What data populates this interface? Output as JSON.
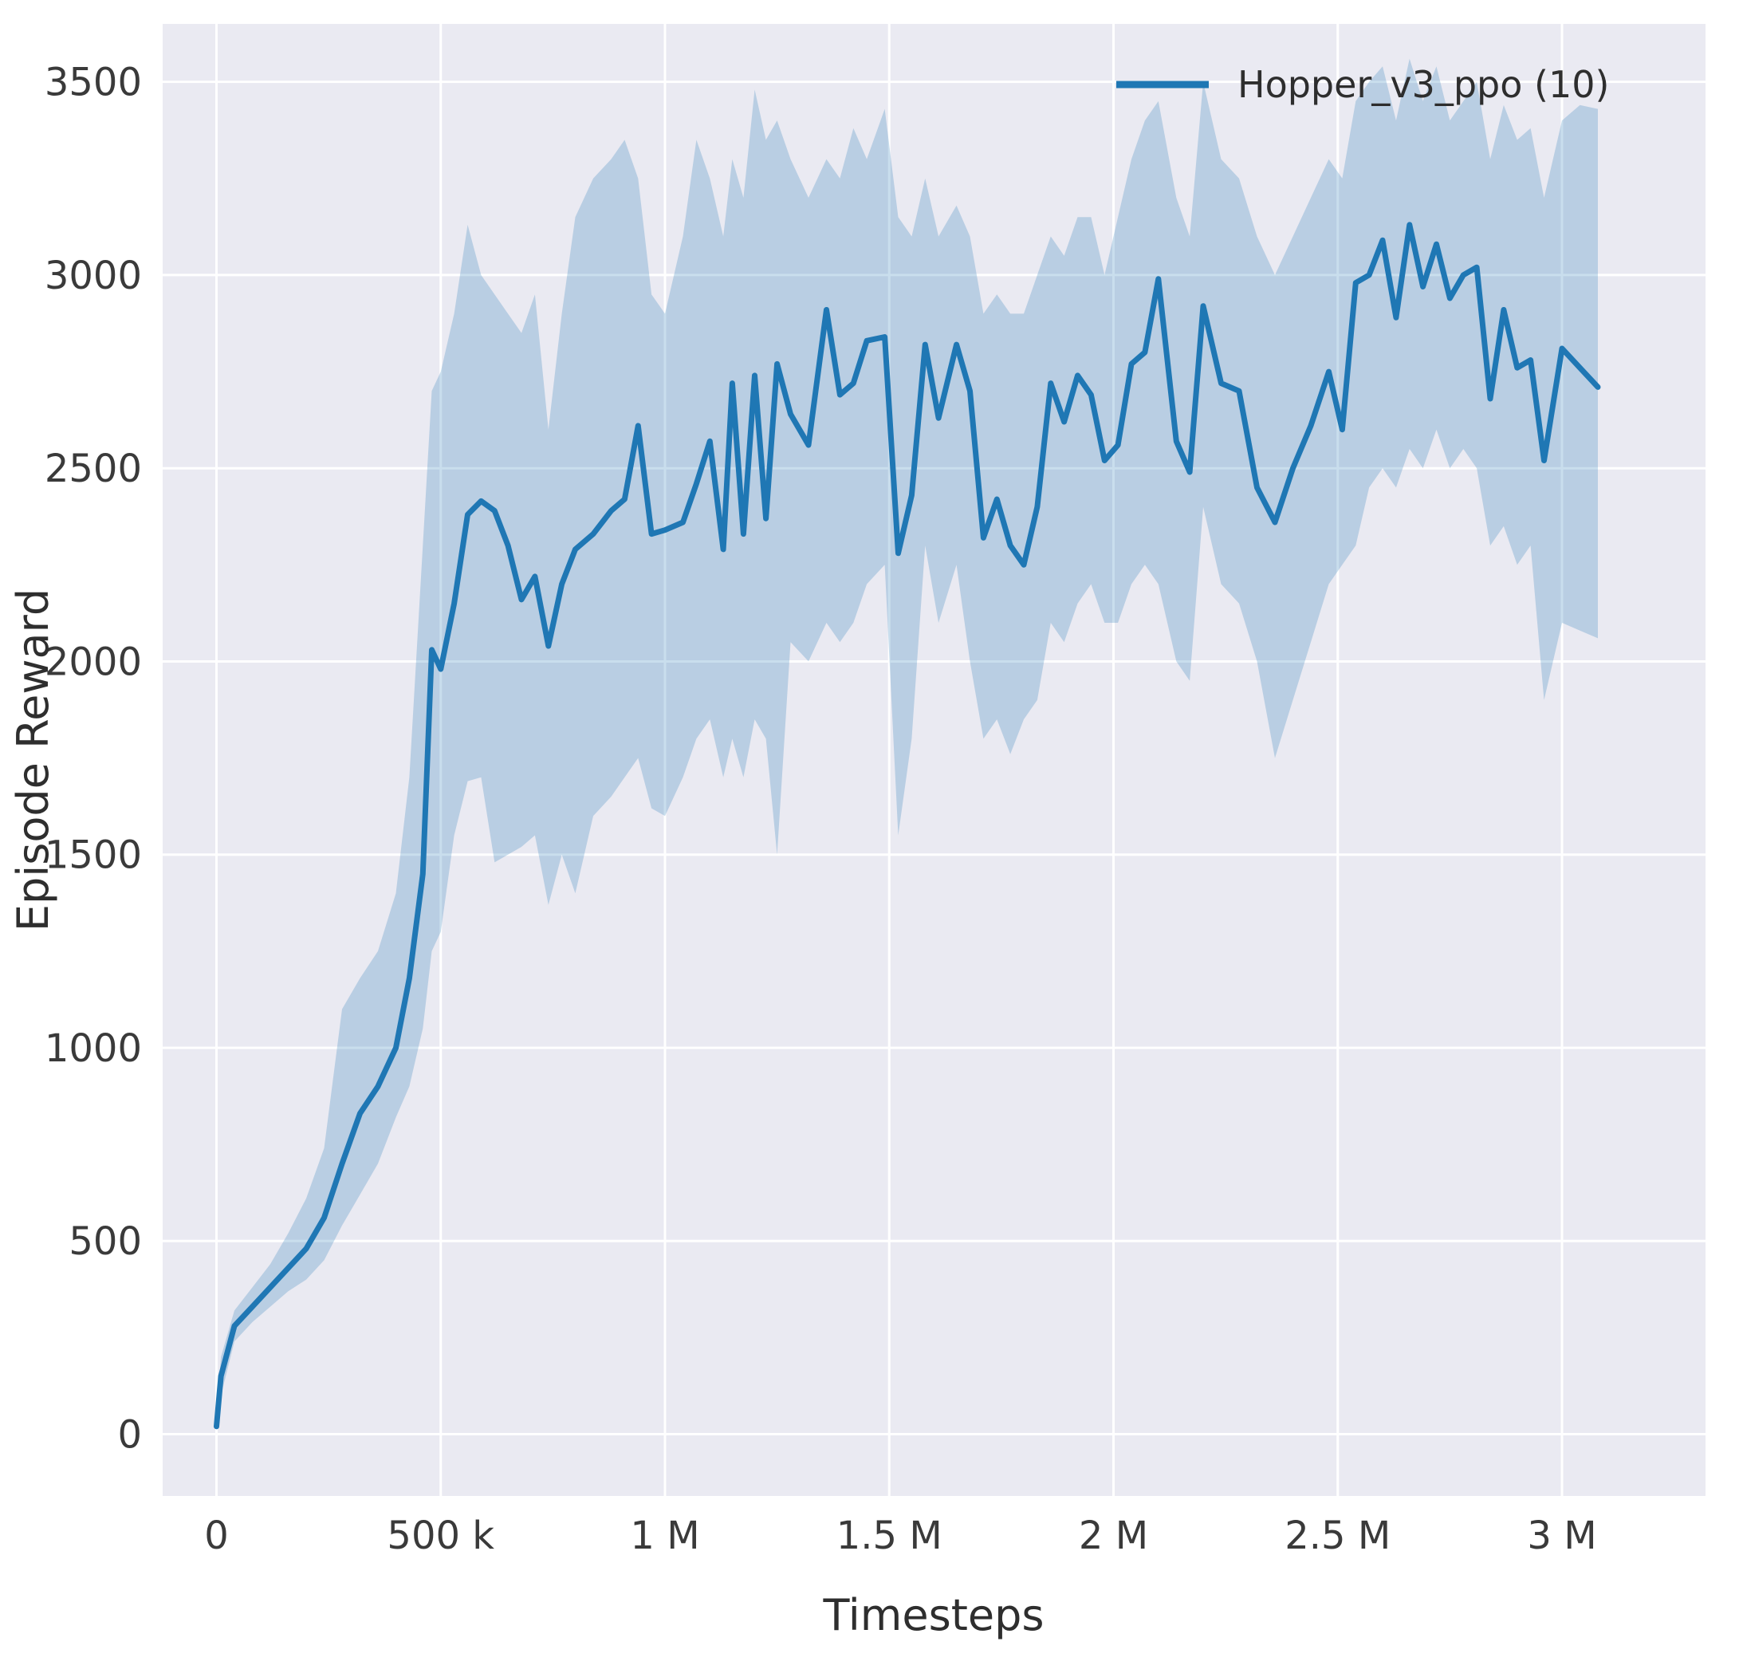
{
  "figure": {
    "background": "#ffffff",
    "axes_background": "#eaeaf2",
    "grid_color": "#ffffff",
    "text_color": "#2e2e2e",
    "tick_color": "#3a3a3a"
  },
  "chart_data": {
    "type": "line",
    "title": "",
    "xlabel": "Timesteps",
    "ylabel": "Episode Reward",
    "xlim": [
      -120000,
      3320000
    ],
    "ylim": [
      -160,
      3650
    ],
    "grid": true,
    "legend_position": "upper right",
    "x_ticks": [
      {
        "value": 0,
        "label": "0"
      },
      {
        "value": 500000,
        "label": "500 k"
      },
      {
        "value": 1000000,
        "label": "1 M"
      },
      {
        "value": 1500000,
        "label": "1.5 M"
      },
      {
        "value": 2000000,
        "label": "2 M"
      },
      {
        "value": 2500000,
        "label": "2.5 M"
      },
      {
        "value": 3000000,
        "label": "3 M"
      }
    ],
    "y_ticks": [
      {
        "value": 0,
        "label": "0"
      },
      {
        "value": 500,
        "label": "500"
      },
      {
        "value": 1000,
        "label": "1000"
      },
      {
        "value": 1500,
        "label": "1500"
      },
      {
        "value": 2000,
        "label": "2000"
      },
      {
        "value": 2500,
        "label": "2500"
      },
      {
        "value": 3000,
        "label": "3000"
      },
      {
        "value": 3500,
        "label": "3500"
      }
    ],
    "series": [
      {
        "name": "Hopper_v3_ppo (10)",
        "color": "#1f77b4",
        "band_opacity": 0.24,
        "points_format": [
          "timesteps",
          "mean_reward",
          "band_low",
          "band_high"
        ],
        "points": [
          [
            0,
            20,
            10,
            40
          ],
          [
            10000,
            150,
            100,
            200
          ],
          [
            40000,
            280,
            240,
            320
          ],
          [
            80000,
            330,
            290,
            380
          ],
          [
            120000,
            380,
            330,
            440
          ],
          [
            160000,
            430,
            370,
            520
          ],
          [
            200000,
            480,
            400,
            610
          ],
          [
            240000,
            560,
            450,
            740
          ],
          [
            280000,
            700,
            540,
            1100
          ],
          [
            320000,
            830,
            620,
            1180
          ],
          [
            360000,
            900,
            700,
            1250
          ],
          [
            400000,
            1000,
            820,
            1400
          ],
          [
            430000,
            1180,
            900,
            1700
          ],
          [
            460000,
            1450,
            1050,
            2300
          ],
          [
            480000,
            2030,
            1250,
            2700
          ],
          [
            500000,
            1980,
            1300,
            2750
          ],
          [
            530000,
            2150,
            1550,
            2900
          ],
          [
            560000,
            2380,
            1690,
            3130
          ],
          [
            590000,
            2415,
            1700,
            3000
          ],
          [
            620000,
            2390,
            1480,
            2950
          ],
          [
            650000,
            2300,
            1500,
            2900
          ],
          [
            680000,
            2160,
            1520,
            2850
          ],
          [
            710000,
            2220,
            1550,
            2950
          ],
          [
            740000,
            2040,
            1370,
            2600
          ],
          [
            770000,
            2200,
            1500,
            2900
          ],
          [
            800000,
            2290,
            1400,
            3150
          ],
          [
            840000,
            2330,
            1600,
            3250
          ],
          [
            880000,
            2390,
            1650,
            3300
          ],
          [
            910000,
            2420,
            1700,
            3350
          ],
          [
            940000,
            2610,
            1750,
            3250
          ],
          [
            970000,
            2330,
            1620,
            2950
          ],
          [
            1000000,
            2340,
            1600,
            2900
          ],
          [
            1040000,
            2360,
            1700,
            3100
          ],
          [
            1070000,
            2460,
            1800,
            3350
          ],
          [
            1100000,
            2570,
            1850,
            3250
          ],
          [
            1130000,
            2290,
            1700,
            3100
          ],
          [
            1150000,
            2720,
            1800,
            3300
          ],
          [
            1175000,
            2330,
            1700,
            3200
          ],
          [
            1200000,
            2740,
            1850,
            3480
          ],
          [
            1225000,
            2370,
            1800,
            3350
          ],
          [
            1250000,
            2770,
            1500,
            3400
          ],
          [
            1280000,
            2640,
            2050,
            3300
          ],
          [
            1320000,
            2560,
            2000,
            3200
          ],
          [
            1360000,
            2910,
            2100,
            3300
          ],
          [
            1390000,
            2690,
            2050,
            3250
          ],
          [
            1420000,
            2720,
            2100,
            3380
          ],
          [
            1450000,
            2830,
            2200,
            3300
          ],
          [
            1490000,
            2840,
            2250,
            3430
          ],
          [
            1520000,
            2280,
            1550,
            3150
          ],
          [
            1550000,
            2430,
            1800,
            3100
          ],
          [
            1580000,
            2820,
            2300,
            3250
          ],
          [
            1610000,
            2630,
            2100,
            3100
          ],
          [
            1650000,
            2820,
            2250,
            3180
          ],
          [
            1680000,
            2700,
            2000,
            3100
          ],
          [
            1710000,
            2320,
            1800,
            2900
          ],
          [
            1740000,
            2420,
            1850,
            2950
          ],
          [
            1770000,
            2300,
            1760,
            2900
          ],
          [
            1800000,
            2250,
            1850,
            2900
          ],
          [
            1830000,
            2400,
            1900,
            3000
          ],
          [
            1860000,
            2720,
            2100,
            3100
          ],
          [
            1890000,
            2620,
            2050,
            3050
          ],
          [
            1920000,
            2740,
            2150,
            3150
          ],
          [
            1950000,
            2690,
            2200,
            3150
          ],
          [
            1980000,
            2520,
            2100,
            3000
          ],
          [
            2010000,
            2560,
            2100,
            3150
          ],
          [
            2040000,
            2770,
            2200,
            3300
          ],
          [
            2070000,
            2800,
            2250,
            3400
          ],
          [
            2100000,
            2990,
            2200,
            3450
          ],
          [
            2140000,
            2570,
            2000,
            3200
          ],
          [
            2170000,
            2490,
            1950,
            3100
          ],
          [
            2200000,
            2920,
            2400,
            3500
          ],
          [
            2240000,
            2720,
            2200,
            3300
          ],
          [
            2280000,
            2700,
            2150,
            3250
          ],
          [
            2320000,
            2450,
            2000,
            3100
          ],
          [
            2360000,
            2360,
            1750,
            3000
          ],
          [
            2400000,
            2500,
            1900,
            3100
          ],
          [
            2440000,
            2610,
            2050,
            3200
          ],
          [
            2480000,
            2750,
            2200,
            3300
          ],
          [
            2510000,
            2600,
            2250,
            3250
          ],
          [
            2540000,
            2980,
            2300,
            3450
          ],
          [
            2570000,
            3000,
            2450,
            3500
          ],
          [
            2600000,
            3090,
            2500,
            3540
          ],
          [
            2630000,
            2890,
            2450,
            3400
          ],
          [
            2660000,
            3130,
            2550,
            3560
          ],
          [
            2690000,
            2970,
            2500,
            3450
          ],
          [
            2720000,
            3080,
            2600,
            3540
          ],
          [
            2750000,
            2940,
            2500,
            3400
          ],
          [
            2780000,
            3000,
            2550,
            3450
          ],
          [
            2810000,
            3020,
            2500,
            3500
          ],
          [
            2840000,
            2680,
            2300,
            3300
          ],
          [
            2870000,
            2910,
            2350,
            3440
          ],
          [
            2900000,
            2760,
            2250,
            3350
          ],
          [
            2930000,
            2780,
            2300,
            3380
          ],
          [
            2960000,
            2520,
            1900,
            3200
          ],
          [
            3000000,
            2810,
            2100,
            3400
          ],
          [
            3040000,
            2760,
            2080,
            3440
          ],
          [
            3080000,
            2710,
            2060,
            3430
          ]
        ]
      }
    ]
  }
}
